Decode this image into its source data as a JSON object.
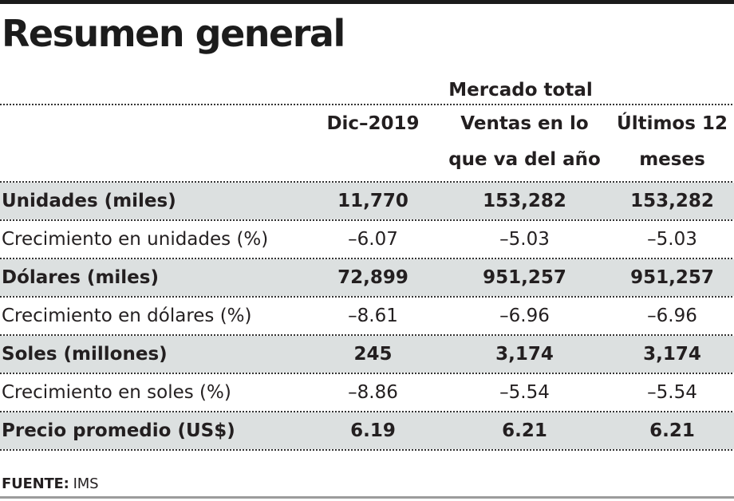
{
  "title": "Resumen general",
  "header": {
    "group_label": "Mercado total",
    "col_period": "Dic–2019",
    "col_ytd_line1": "Ventas en lo",
    "col_ytd_line2": "que va del año",
    "col_12m_line1": "Últimos 12",
    "col_12m_line2": "meses"
  },
  "rows": [
    {
      "label": "Unidades (miles)",
      "v1": "11,770",
      "v2": "153,282",
      "v3": "153,282"
    },
    {
      "label": "Crecimiento en unidades (%)",
      "v1": "–6.07",
      "v2": "–5.03",
      "v3": "–5.03"
    },
    {
      "label": "Dólares (miles)",
      "v1": "72,899",
      "v2": "951,257",
      "v3": "951,257"
    },
    {
      "label": "Crecimiento en dólares (%)",
      "v1": "–8.61",
      "v2": "–6.96",
      "v3": "–6.96"
    },
    {
      "label": "Soles (millones)",
      "v1": "245",
      "v2": "3,174",
      "v3": "3,174"
    },
    {
      "label": "Crecimiento en soles (%)",
      "v1": "–8.86",
      "v2": "–5.54",
      "v3": "–5.54"
    },
    {
      "label": "Precio promedio (US$)",
      "v1": "6.19",
      "v2": "6.21",
      "v3": "6.21"
    }
  ],
  "footer": {
    "source_label": "FUENTE:",
    "source_value": "IMS"
  },
  "colors": {
    "row_highlight": "#dce0e0",
    "text": "#231f20",
    "top_rule": "#1b1b1b",
    "bottom_rule": "#9c9c9c",
    "dotted_separator": "#343434"
  },
  "chart_data": {
    "type": "table",
    "title": "Resumen general",
    "group_header": {
      "label": "Mercado total",
      "spans_columns": [
        "Dic–2019",
        "Ventas en lo que va del año",
        "Últimos 12 meses"
      ]
    },
    "columns": [
      "Dic–2019",
      "Ventas en lo que va del año",
      "Últimos 12 meses"
    ],
    "row_headers": [
      "Unidades (miles)",
      "Crecimiento en unidades (%)",
      "Dólares (miles)",
      "Crecimiento en dólares (%)",
      "Soles (millones)",
      "Crecimiento en soles (%)",
      "Precio promedio (US$)"
    ],
    "values": [
      [
        11770,
        153282,
        153282
      ],
      [
        -6.07,
        -5.03,
        -5.03
      ],
      [
        72899,
        951257,
        951257
      ],
      [
        -8.61,
        -6.96,
        -6.96
      ],
      [
        245,
        3174,
        3174
      ],
      [
        -8.86,
        -5.54,
        -5.54
      ],
      [
        6.19,
        6.21,
        6.21
      ]
    ],
    "highlighted_rows": [
      0,
      2,
      4,
      6
    ],
    "source": "IMS"
  }
}
